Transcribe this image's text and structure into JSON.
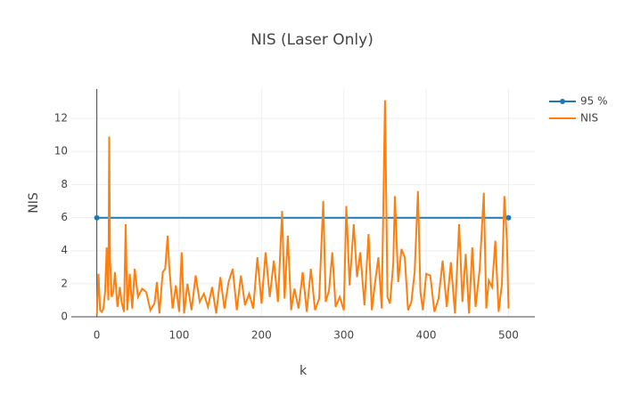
{
  "chart_data": {
    "type": "line",
    "title": "NIS (Laser Only)",
    "x_label": "k",
    "y_label": "NIS",
    "xlim": [
      -31,
      532
    ],
    "ylim": [
      0,
      13.78
    ],
    "xticks": [
      0,
      100,
      200,
      300,
      400,
      500
    ],
    "yticks": [
      0,
      2,
      4,
      6,
      8,
      10,
      12
    ],
    "grid": true,
    "legend": "right",
    "series": [
      {
        "name": "95 %",
        "color": "#1f77b4",
        "markers": true,
        "x": [
          0,
          500
        ],
        "values": [
          5.991,
          5.991
        ]
      },
      {
        "name": "NIS",
        "color": "#ff7f0e",
        "markers": false,
        "x": [
          0,
          2,
          4,
          6,
          8,
          10,
          12,
          14,
          15,
          16,
          18,
          20,
          22,
          25,
          28,
          30,
          33,
          35,
          37,
          40,
          43,
          46,
          50,
          55,
          60,
          65,
          70,
          73,
          76,
          80,
          83,
          86,
          88,
          92,
          96,
          100,
          103,
          106,
          110,
          115,
          120,
          125,
          130,
          135,
          140,
          145,
          150,
          155,
          160,
          165,
          170,
          175,
          180,
          185,
          190,
          195,
          200,
          205,
          210,
          215,
          220,
          225,
          228,
          232,
          236,
          240,
          245,
          250,
          255,
          260,
          265,
          270,
          275,
          278,
          282,
          286,
          290,
          295,
          300,
          303,
          307,
          312,
          316,
          320,
          325,
          330,
          334,
          338,
          342,
          346,
          350,
          353,
          356,
          360,
          362,
          366,
          370,
          374,
          378,
          382,
          386,
          390,
          393,
          396,
          400,
          405,
          410,
          415,
          420,
          425,
          430,
          435,
          440,
          444,
          448,
          452,
          456,
          460,
          465,
          470,
          473,
          476,
          480,
          484,
          488,
          492,
          495,
          498,
          500
        ],
        "values": [
          0.1,
          2.6,
          0.4,
          0.3,
          0.5,
          1.5,
          4.2,
          1.0,
          10.9,
          3.5,
          1.2,
          1.5,
          2.7,
          0.6,
          1.8,
          0.9,
          0.3,
          5.6,
          0.4,
          2.6,
          0.5,
          2.9,
          1.2,
          1.7,
          1.5,
          0.4,
          0.8,
          2.1,
          0.2,
          2.7,
          2.9,
          4.9,
          3.0,
          0.5,
          1.9,
          0.3,
          3.9,
          0.2,
          2.0,
          0.4,
          2.5,
          0.9,
          1.4,
          0.6,
          1.8,
          0.2,
          2.4,
          0.5,
          2.1,
          2.9,
          0.4,
          2.5,
          0.7,
          1.4,
          0.5,
          3.6,
          0.8,
          3.9,
          1.2,
          3.4,
          0.9,
          6.4,
          1.1,
          4.9,
          0.4,
          1.7,
          0.5,
          2.7,
          0.3,
          2.9,
          0.4,
          1.1,
          7.0,
          0.9,
          1.6,
          3.9,
          0.6,
          1.2,
          0.4,
          6.7,
          1.9,
          5.6,
          2.4,
          3.9,
          0.7,
          5.0,
          0.4,
          2.1,
          3.6,
          0.5,
          13.1,
          1.2,
          0.8,
          3.2,
          7.3,
          2.1,
          4.1,
          3.6,
          0.4,
          0.9,
          2.7,
          7.6,
          1.5,
          0.4,
          2.6,
          2.5,
          0.3,
          1.1,
          3.4,
          0.6,
          3.3,
          0.2,
          5.6,
          0.9,
          3.8,
          0.2,
          4.2,
          0.6,
          2.9,
          7.5,
          0.5,
          2.2,
          1.8,
          4.6,
          0.3,
          2.0,
          7.3,
          4.7,
          0.5
        ]
      }
    ]
  }
}
